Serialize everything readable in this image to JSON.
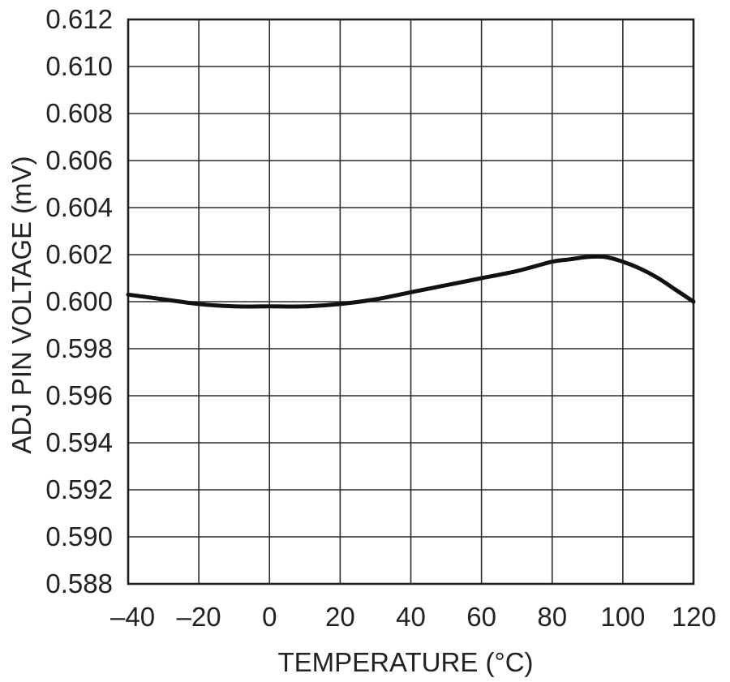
{
  "chart_data": {
    "type": "line",
    "title": "",
    "xlabel": "TEMPERATURE (°C)",
    "ylabel": "ADJ PIN VOLTAGE (mV)",
    "xlim": [
      -40,
      120
    ],
    "ylim": [
      0.588,
      0.612
    ],
    "x_ticks": [
      -40,
      -20,
      0,
      20,
      40,
      60,
      80,
      100,
      120
    ],
    "x_tick_labels": [
      "–40",
      "–20",
      "0",
      "20",
      "40",
      "60",
      "80",
      "100",
      "120"
    ],
    "y_ticks": [
      0.588,
      0.59,
      0.592,
      0.594,
      0.596,
      0.598,
      0.6,
      0.602,
      0.604,
      0.606,
      0.608,
      0.61,
      0.612
    ],
    "y_tick_labels": [
      "0.588",
      "0.590",
      "0.592",
      "0.594",
      "0.596",
      "0.598",
      "0.600",
      "0.602",
      "0.604",
      "0.606",
      "0.608",
      "0.610",
      "0.612"
    ],
    "grid": true,
    "series": [
      {
        "x": [
          -40,
          -30,
          -20,
          -10,
          0,
          10,
          20,
          30,
          40,
          50,
          60,
          70,
          80,
          85,
          90,
          95,
          100,
          105,
          110,
          115,
          120
        ],
        "y": [
          0.6003,
          0.6001,
          0.5999,
          0.5998,
          0.5998,
          0.5998,
          0.5999,
          0.6001,
          0.6004,
          0.6007,
          0.601,
          0.6013,
          0.6017,
          0.6018,
          0.6019,
          0.6019,
          0.6017,
          0.6014,
          0.601,
          0.6005,
          0.6
        ],
        "color": "#111111"
      }
    ]
  }
}
